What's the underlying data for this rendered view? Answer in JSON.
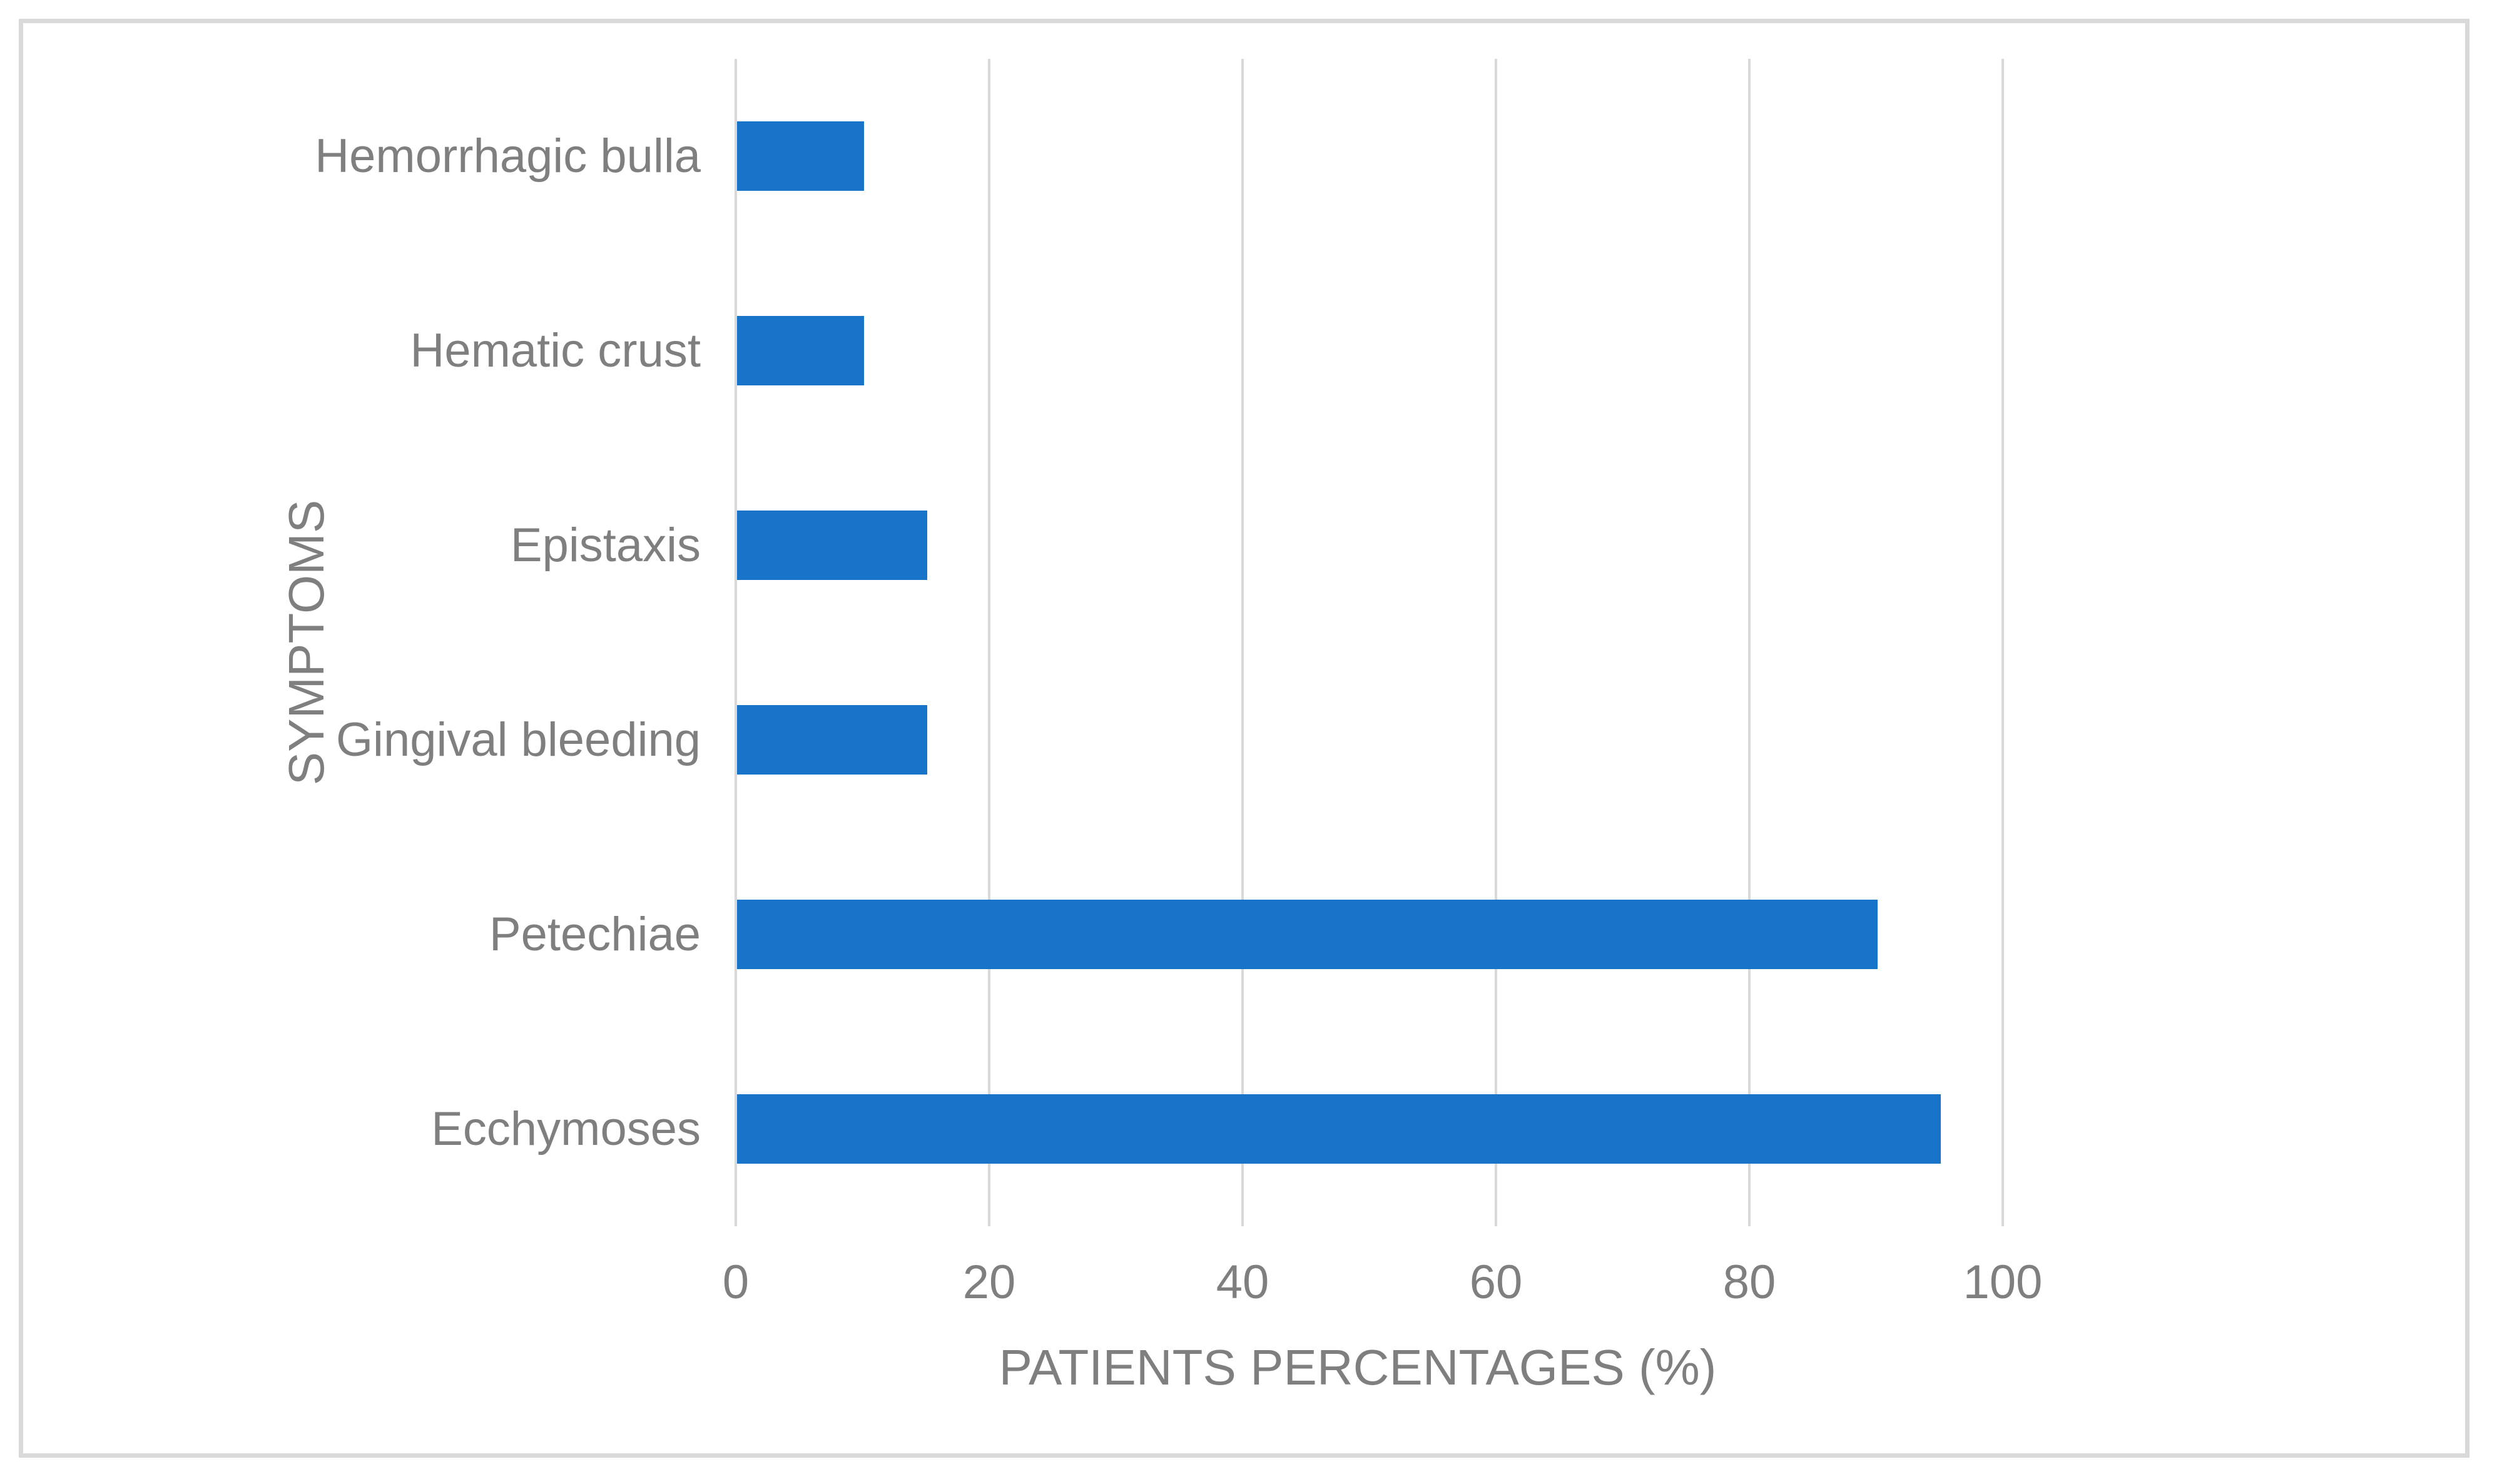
{
  "chart_data": {
    "type": "bar",
    "orientation": "horizontal",
    "title": "",
    "xlabel": "PATIENTS PERCENTAGES (%)",
    "ylabel": "SYMPTOMS",
    "categories": [
      "Hemorrhagic bulla",
      "Hematic crust",
      "Epistaxis",
      "Gingival bleeding",
      "Petechiae",
      "Ecchymoses"
    ],
    "values": [
      10,
      10,
      15,
      15,
      90,
      95
    ],
    "x_ticks": [
      0,
      20,
      40,
      60,
      80,
      100
    ],
    "xlim": [
      0,
      100
    ],
    "grid": "vertical-major-only",
    "legend": "none",
    "colors": {
      "bar": "#1774C9",
      "gridline": "#D9D9D9",
      "frame_border": "#D9D9D9",
      "text": "#7F7F7F",
      "background": "#FFFFFF"
    }
  }
}
